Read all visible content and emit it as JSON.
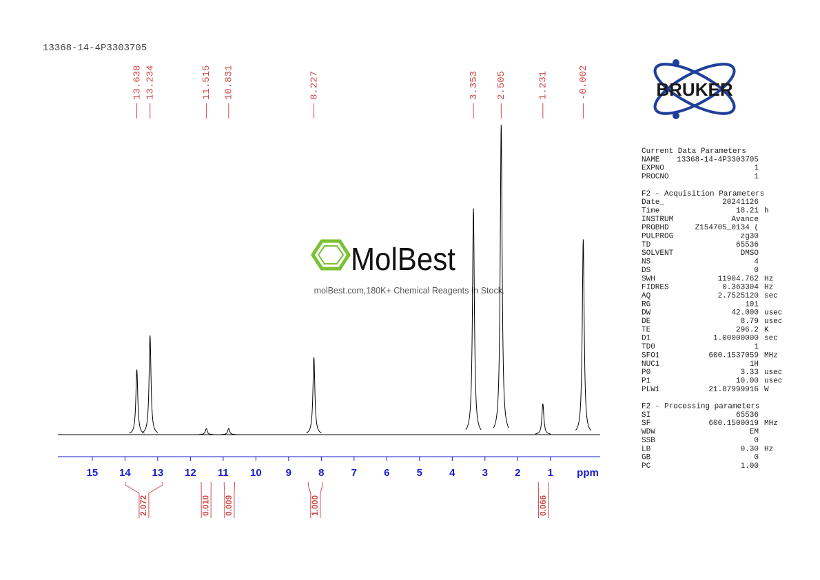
{
  "sample_name": "13368-14-4P3303705",
  "chart_data": {
    "type": "nmr",
    "x_label": "ppm",
    "xlim": [
      16.05,
      -0.52
    ],
    "xticks": [
      15,
      14,
      13,
      12,
      11,
      10,
      9,
      8,
      7,
      6,
      5,
      4,
      3,
      2,
      1
    ],
    "ylim": [
      0,
      100
    ],
    "line_color": "#000000",
    "label_color": "#d04848",
    "axis_color": "#1a1acc",
    "peaks": [
      {
        "shift": 13.638,
        "height": 21
      },
      {
        "shift": 13.234,
        "height": 32
      },
      {
        "shift": 11.515,
        "height": 2
      },
      {
        "shift": 10.831,
        "height": 2
      },
      {
        "shift": 8.227,
        "height": 25
      },
      {
        "shift": 3.353,
        "height": 73
      },
      {
        "shift": 2.505,
        "height": 100
      },
      {
        "shift": 1.231,
        "height": 10
      },
      {
        "shift": -0.002,
        "height": 63
      }
    ],
    "integrals": [
      {
        "from": 13.99,
        "to": 12.85,
        "value": 2.072
      },
      {
        "from": 11.67,
        "to": 11.37,
        "value": {
          "value": 0.01,
          "label": "0.010"
        }
      },
      {
        "from": 10.97,
        "to": 10.65,
        "value": 0.009
      },
      {
        "from": 8.4,
        "to": 7.96,
        "value": {
          "value": 1,
          "label": "1.000"
        }
      },
      {
        "from": 1.37,
        "to": 1.06,
        "value": 0.066
      }
    ]
  },
  "logo": {
    "bruker": "BRUKER",
    "molbest": "MolBest",
    "tagline": "molBest.com,180K+ Chemical Reagents In Stock."
  },
  "parameters": [
    {
      "title": "Current Data Parameters",
      "rows": [
        [
          "NAME",
          "13368-14-4P3303705"
        ],
        [
          "EXPNO",
          "1"
        ],
        [
          "PROCNO",
          "1"
        ]
      ]
    },
    {
      "title": "F2 - Acquisition Parameters",
      "rows": [
        [
          "Date_",
          "20241126"
        ],
        [
          "Time",
          "18.21",
          "h"
        ],
        [
          "INSTRUM",
          "Avance"
        ],
        [
          "PROBHD",
          "Z154705_0134 ("
        ],
        [
          "PULPROG",
          "zg30"
        ],
        [
          "TD",
          "65536"
        ],
        [
          "SOLVENT",
          "DMSO"
        ],
        [
          "NS",
          "4"
        ],
        [
          "DS",
          "0"
        ],
        [
          "SWH",
          "11904.762",
          "Hz"
        ],
        [
          "FIDRES",
          "0.363304",
          "Hz"
        ],
        [
          "AQ",
          "2.7525120",
          "sec"
        ],
        [
          "RG",
          "101"
        ],
        [
          "DW",
          "42.000",
          "usec"
        ],
        [
          "DE",
          "8.79",
          "usec"
        ],
        [
          "TE",
          "296.2",
          "K"
        ],
        [
          "D1",
          "1.00000000",
          "sec"
        ],
        [
          "TD0",
          "1"
        ],
        [
          "SFO1",
          "600.1537059",
          "MHz"
        ],
        [
          "NUC1",
          "1H"
        ],
        [
          "P0",
          "3.33",
          "usec"
        ],
        [
          "P1",
          "10.00",
          "usec"
        ],
        [
          "PLW1",
          "21.87999916",
          "W"
        ]
      ]
    },
    {
      "title": "F2 - Processing parameters",
      "rows": [
        [
          "SI",
          "65536"
        ],
        [
          "SF",
          "600.1500019",
          "MHz"
        ],
        [
          "WDW",
          "EM"
        ],
        [
          "SSB",
          "0"
        ],
        [
          "LB",
          "0.30",
          "Hz"
        ],
        [
          "GB",
          "0"
        ],
        [
          "PC",
          "1.00"
        ]
      ]
    }
  ]
}
